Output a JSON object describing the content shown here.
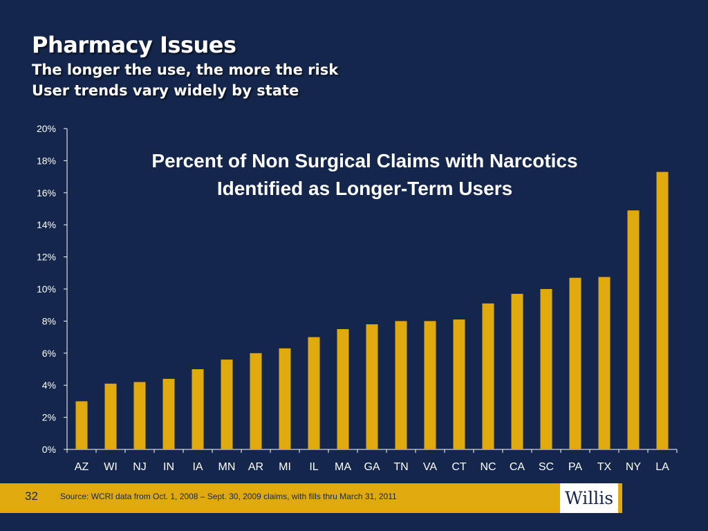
{
  "header": {
    "title": "Pharmacy Issues",
    "subtitle_1": "The longer the use, the more the risk",
    "subtitle_2": "User trends vary widely by state"
  },
  "chart_data": {
    "type": "bar",
    "title_line_1": "Percent of Non Surgical Claims with Narcotics",
    "title_line_2": "Identified as Longer-Term Users",
    "categories": [
      "AZ",
      "WI",
      "NJ",
      "IN",
      "IA",
      "MN",
      "AR",
      "MI",
      "IL",
      "MA",
      "GA",
      "TN",
      "VA",
      "CT",
      "NC",
      "CA",
      "SC",
      "PA",
      "TX",
      "NY",
      "LA"
    ],
    "values": [
      3.0,
      4.1,
      4.2,
      4.4,
      5.0,
      5.6,
      6.0,
      6.3,
      7.0,
      7.5,
      7.8,
      8.0,
      8.0,
      8.1,
      9.1,
      9.7,
      10.0,
      10.7,
      10.75,
      14.9,
      17.3
    ],
    "y_ticks": [
      "0%",
      "2%",
      "4%",
      "6%",
      "8%",
      "10%",
      "12%",
      "14%",
      "16%",
      "18%",
      "20%"
    ],
    "ylim": [
      0,
      20
    ],
    "grid": false,
    "bar_color": "#e0aa0f",
    "axis_color": "#ffffff"
  },
  "footer": {
    "page_number": "32",
    "source": "Source: WCRI data from Oct. 1, 2008 – Sept. 30, 2009 claims, with fills thru March 31, 2011",
    "logo_text": "Willis"
  },
  "colors": {
    "background": "#14264b",
    "accent": "#e0aa0f"
  }
}
